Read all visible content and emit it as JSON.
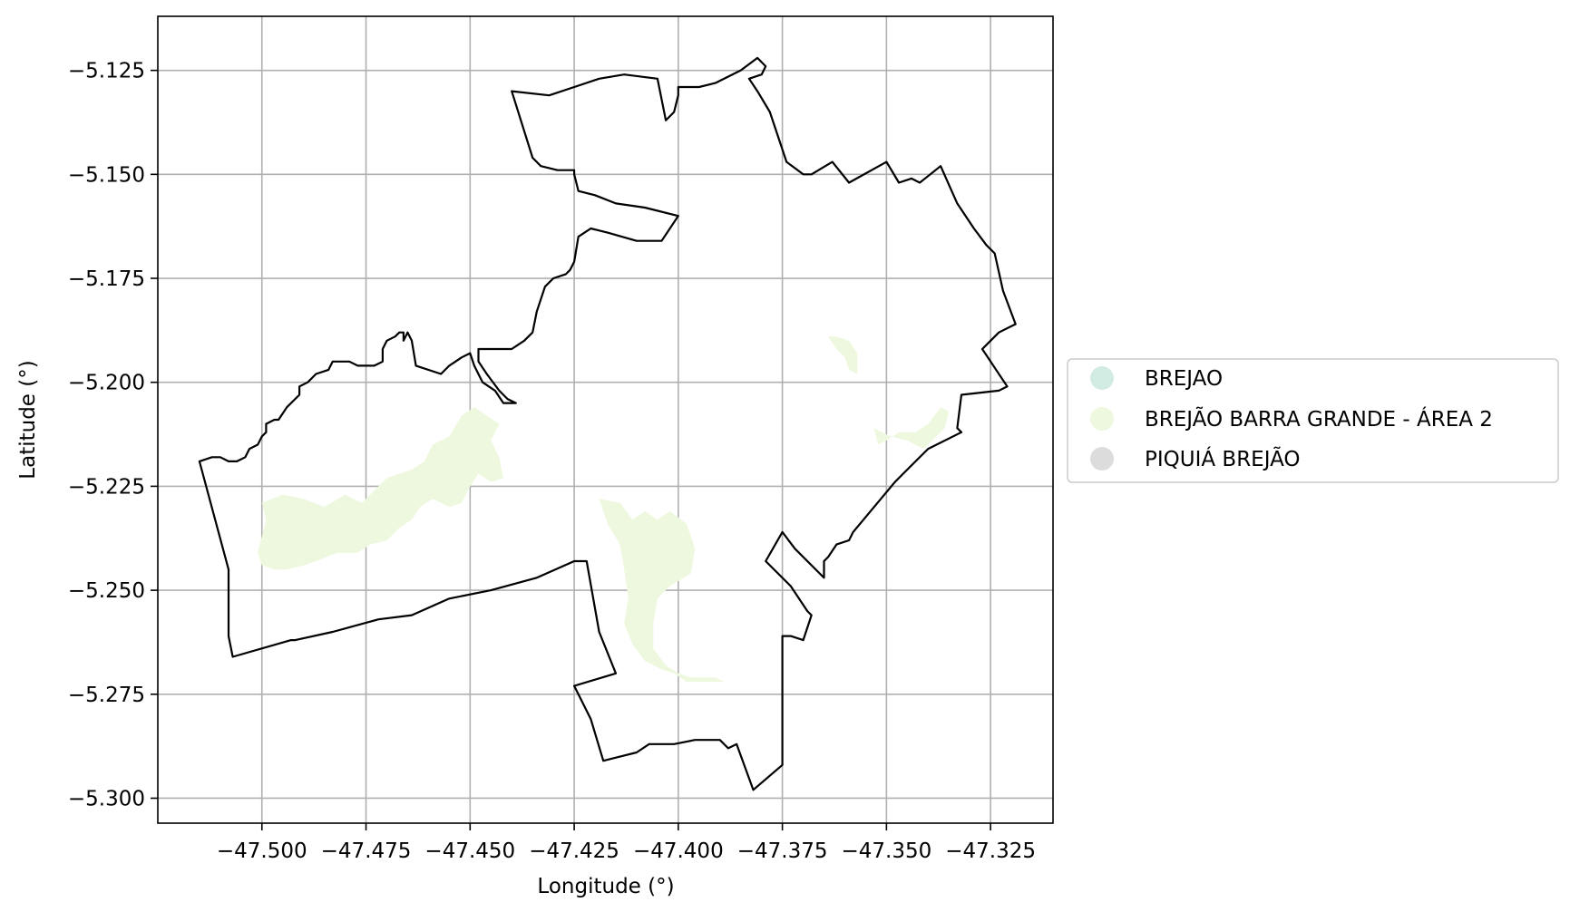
{
  "chart_data": {
    "type": "map",
    "xlabel": "Longitude (°)",
    "ylabel": "Latitude (°)",
    "xlim": [
      -47.525,
      -47.31
    ],
    "ylim": [
      -5.306,
      -5.112
    ],
    "x_ticks": [
      -47.5,
      -47.475,
      -47.45,
      -47.425,
      -47.4,
      -47.375,
      -47.35,
      -47.325
    ],
    "x_tick_labels": [
      "−47.500",
      "−47.475",
      "−47.450",
      "−47.425",
      "−47.400",
      "−47.375",
      "−47.350",
      "−47.325"
    ],
    "y_ticks": [
      -5.125,
      -5.15,
      -5.175,
      -5.2,
      -5.225,
      -5.25,
      -5.275,
      -5.3
    ],
    "y_tick_labels": [
      "−5.125",
      "−5.150",
      "−5.175",
      "−5.200",
      "−5.225",
      "−5.250",
      "−5.275",
      "−5.300"
    ],
    "grid": true,
    "legend_position": "right",
    "legend": [
      {
        "label": "BREJAO",
        "color": "#d2ece4"
      },
      {
        "label": "BREJÃO BARRA GRANDE - ÁREA 2",
        "color": "#eef8de"
      },
      {
        "label": "PIQUIÁ BREJÃO",
        "color": "#dcdcdc"
      }
    ],
    "boundary": {
      "stroke": "#000000",
      "points": [
        [
          -47.44,
          -5.13
        ],
        [
          -47.431,
          -5.131
        ],
        [
          -47.425,
          -5.129
        ],
        [
          -47.419,
          -5.127
        ],
        [
          -47.413,
          -5.126
        ],
        [
          -47.405,
          -5.127
        ],
        [
          -47.403,
          -5.137
        ],
        [
          -47.402,
          -5.136
        ],
        [
          -47.401,
          -5.135
        ],
        [
          -47.4,
          -5.131
        ],
        [
          -47.4,
          -5.129
        ],
        [
          -47.395,
          -5.129
        ],
        [
          -47.391,
          -5.128
        ],
        [
          -47.385,
          -5.125
        ],
        [
          -47.381,
          -5.122
        ],
        [
          -47.379,
          -5.124
        ],
        [
          -47.38,
          -5.126
        ],
        [
          -47.383,
          -5.127
        ],
        [
          -47.381,
          -5.13
        ],
        [
          -47.378,
          -5.135
        ],
        [
          -47.376,
          -5.141
        ],
        [
          -47.374,
          -5.147
        ],
        [
          -47.37,
          -5.15
        ],
        [
          -47.368,
          -5.15
        ],
        [
          -47.363,
          -5.147
        ],
        [
          -47.359,
          -5.152
        ],
        [
          -47.35,
          -5.147
        ],
        [
          -47.347,
          -5.152
        ],
        [
          -47.344,
          -5.151
        ],
        [
          -47.342,
          -5.152
        ],
        [
          -47.337,
          -5.148
        ],
        [
          -47.333,
          -5.157
        ],
        [
          -47.329,
          -5.163
        ],
        [
          -47.326,
          -5.167
        ],
        [
          -47.324,
          -5.169
        ],
        [
          -47.322,
          -5.178
        ],
        [
          -47.319,
          -5.186
        ],
        [
          -47.323,
          -5.188
        ],
        [
          -47.327,
          -5.192
        ],
        [
          -47.321,
          -5.201
        ],
        [
          -47.323,
          -5.202
        ],
        [
          -47.332,
          -5.203
        ],
        [
          -47.333,
          -5.211
        ],
        [
          -47.332,
          -5.212
        ],
        [
          -47.34,
          -5.216
        ],
        [
          -47.346,
          -5.222
        ],
        [
          -47.348,
          -5.224
        ],
        [
          -47.358,
          -5.236
        ],
        [
          -47.359,
          -5.238
        ],
        [
          -47.362,
          -5.239
        ],
        [
          -47.364,
          -5.242
        ],
        [
          -47.365,
          -5.243
        ],
        [
          -47.365,
          -5.247
        ],
        [
          -47.372,
          -5.24
        ],
        [
          -47.375,
          -5.236
        ],
        [
          -47.379,
          -5.243
        ],
        [
          -47.373,
          -5.249
        ],
        [
          -47.369,
          -5.255
        ],
        [
          -47.368,
          -5.256
        ],
        [
          -47.37,
          -5.262
        ],
        [
          -47.373,
          -5.261
        ],
        [
          -47.375,
          -5.261
        ],
        [
          -47.375,
          -5.264
        ],
        [
          -47.375,
          -5.292
        ],
        [
          -47.382,
          -5.298
        ],
        [
          -47.386,
          -5.287
        ],
        [
          -47.388,
          -5.288
        ],
        [
          -47.39,
          -5.286
        ],
        [
          -47.392,
          -5.286
        ],
        [
          -47.396,
          -5.286
        ],
        [
          -47.401,
          -5.287
        ],
        [
          -47.407,
          -5.287
        ],
        [
          -47.41,
          -5.289
        ],
        [
          -47.414,
          -5.29
        ],
        [
          -47.418,
          -5.291
        ],
        [
          -47.421,
          -5.281
        ],
        [
          -47.425,
          -5.273
        ],
        [
          -47.415,
          -5.27
        ],
        [
          -47.419,
          -5.26
        ],
        [
          -47.422,
          -5.243
        ],
        [
          -47.425,
          -5.243
        ],
        [
          -47.434,
          -5.247
        ],
        [
          -47.445,
          -5.25
        ],
        [
          -47.455,
          -5.252
        ],
        [
          -47.464,
          -5.256
        ],
        [
          -47.472,
          -5.257
        ],
        [
          -47.483,
          -5.26
        ],
        [
          -47.492,
          -5.262
        ],
        [
          -47.493,
          -5.262
        ],
        [
          -47.507,
          -5.266
        ],
        [
          -47.508,
          -5.261
        ],
        [
          -47.508,
          -5.245
        ],
        [
          -47.515,
          -5.219
        ],
        [
          -47.512,
          -5.218
        ],
        [
          -47.51,
          -5.218
        ],
        [
          -47.508,
          -5.219
        ],
        [
          -47.506,
          -5.219
        ],
        [
          -47.504,
          -5.218
        ],
        [
          -47.503,
          -5.216
        ],
        [
          -47.501,
          -5.215
        ],
        [
          -47.5,
          -5.213
        ],
        [
          -47.499,
          -5.212
        ],
        [
          -47.499,
          -5.21
        ],
        [
          -47.497,
          -5.209
        ],
        [
          -47.496,
          -5.209
        ],
        [
          -47.494,
          -5.206
        ],
        [
          -47.493,
          -5.205
        ],
        [
          -47.491,
          -5.203
        ],
        [
          -47.491,
          -5.201
        ],
        [
          -47.489,
          -5.2
        ],
        [
          -47.487,
          -5.198
        ],
        [
          -47.484,
          -5.197
        ],
        [
          -47.483,
          -5.195
        ],
        [
          -47.48,
          -5.195
        ],
        [
          -47.479,
          -5.195
        ],
        [
          -47.477,
          -5.196
        ],
        [
          -47.476,
          -5.196
        ],
        [
          -47.473,
          -5.196
        ],
        [
          -47.471,
          -5.195
        ],
        [
          -47.471,
          -5.192
        ],
        [
          -47.47,
          -5.19
        ],
        [
          -47.468,
          -5.189
        ],
        [
          -47.467,
          -5.188
        ],
        [
          -47.466,
          -5.188
        ],
        [
          -47.466,
          -5.19
        ],
        [
          -47.465,
          -5.188
        ],
        [
          -47.464,
          -5.19
        ],
        [
          -47.463,
          -5.196
        ],
        [
          -47.457,
          -5.198
        ],
        [
          -47.455,
          -5.196
        ],
        [
          -47.452,
          -5.194
        ],
        [
          -47.45,
          -5.193
        ],
        [
          -47.449,
          -5.196
        ],
        [
          -47.447,
          -5.2
        ],
        [
          -47.444,
          -5.202
        ],
        [
          -47.442,
          -5.205
        ],
        [
          -47.44,
          -5.205
        ],
        [
          -47.439,
          -5.205
        ],
        [
          -47.441,
          -5.204
        ],
        [
          -47.443,
          -5.202
        ],
        [
          -47.446,
          -5.198
        ],
        [
          -47.448,
          -5.195
        ],
        [
          -47.448,
          -5.192
        ],
        [
          -47.443,
          -5.192
        ],
        [
          -47.44,
          -5.192
        ],
        [
          -47.437,
          -5.19
        ],
        [
          -47.435,
          -5.188
        ],
        [
          -47.434,
          -5.183
        ],
        [
          -47.432,
          -5.177
        ],
        [
          -47.43,
          -5.175
        ],
        [
          -47.427,
          -5.174
        ],
        [
          -47.426,
          -5.173
        ],
        [
          -47.425,
          -5.171
        ],
        [
          -47.424,
          -5.165
        ],
        [
          -47.421,
          -5.163
        ],
        [
          -47.417,
          -5.164
        ],
        [
          -47.41,
          -5.166
        ],
        [
          -47.404,
          -5.166
        ],
        [
          -47.4,
          -5.16
        ],
        [
          -47.408,
          -5.158
        ],
        [
          -47.415,
          -5.157
        ],
        [
          -47.42,
          -5.155
        ],
        [
          -47.424,
          -5.154
        ],
        [
          -47.425,
          -5.15
        ],
        [
          -47.425,
          -5.149
        ],
        [
          -47.429,
          -5.149
        ],
        [
          -47.433,
          -5.148
        ],
        [
          -47.435,
          -5.146
        ],
        [
          -47.44,
          -5.13
        ]
      ]
    },
    "wetland_patches": {
      "fill": "#eef8de",
      "polygons": [
        [
          [
            -47.5,
            -5.229
          ],
          [
            -47.495,
            -5.227
          ],
          [
            -47.49,
            -5.228
          ],
          [
            -47.485,
            -5.23
          ],
          [
            -47.48,
            -5.227
          ],
          [
            -47.476,
            -5.229
          ],
          [
            -47.473,
            -5.226
          ],
          [
            -47.47,
            -5.223
          ],
          [
            -47.467,
            -5.222
          ],
          [
            -47.464,
            -5.221
          ],
          [
            -47.461,
            -5.219
          ],
          [
            -47.459,
            -5.215
          ],
          [
            -47.455,
            -5.213
          ],
          [
            -47.452,
            -5.208
          ],
          [
            -47.449,
            -5.206
          ],
          [
            -47.446,
            -5.208
          ],
          [
            -47.443,
            -5.21
          ],
          [
            -47.445,
            -5.214
          ],
          [
            -47.443,
            -5.218
          ],
          [
            -47.442,
            -5.223
          ],
          [
            -47.445,
            -5.224
          ],
          [
            -47.448,
            -5.222
          ],
          [
            -47.45,
            -5.225
          ],
          [
            -47.452,
            -5.229
          ],
          [
            -47.455,
            -5.23
          ],
          [
            -47.459,
            -5.228
          ],
          [
            -47.462,
            -5.23
          ],
          [
            -47.464,
            -5.233
          ],
          [
            -47.467,
            -5.235
          ],
          [
            -47.47,
            -5.238
          ],
          [
            -47.474,
            -5.239
          ],
          [
            -47.477,
            -5.241
          ],
          [
            -47.482,
            -5.241
          ],
          [
            -47.487,
            -5.243
          ],
          [
            -47.49,
            -5.244
          ],
          [
            -47.494,
            -5.245
          ],
          [
            -47.497,
            -5.245
          ],
          [
            -47.5,
            -5.244
          ],
          [
            -47.501,
            -5.241
          ],
          [
            -47.5,
            -5.237
          ],
          [
            -47.499,
            -5.233
          ]
        ],
        [
          [
            -47.419,
            -5.228
          ],
          [
            -47.414,
            -5.229
          ],
          [
            -47.411,
            -5.233
          ],
          [
            -47.408,
            -5.231
          ],
          [
            -47.405,
            -5.233
          ],
          [
            -47.402,
            -5.231
          ],
          [
            -47.398,
            -5.234
          ],
          [
            -47.396,
            -5.24
          ],
          [
            -47.397,
            -5.246
          ],
          [
            -47.402,
            -5.249
          ],
          [
            -47.405,
            -5.252
          ],
          [
            -47.406,
            -5.258
          ],
          [
            -47.406,
            -5.264
          ],
          [
            -47.403,
            -5.268
          ],
          [
            -47.4,
            -5.27
          ],
          [
            -47.397,
            -5.271
          ],
          [
            -47.394,
            -5.271
          ],
          [
            -47.391,
            -5.271
          ],
          [
            -47.389,
            -5.272
          ],
          [
            -47.393,
            -5.272
          ],
          [
            -47.398,
            -5.272
          ],
          [
            -47.401,
            -5.27
          ],
          [
            -47.404,
            -5.269
          ],
          [
            -47.408,
            -5.267
          ],
          [
            -47.411,
            -5.263
          ],
          [
            -47.413,
            -5.258
          ],
          [
            -47.412,
            -5.252
          ],
          [
            -47.413,
            -5.245
          ],
          [
            -47.414,
            -5.239
          ],
          [
            -47.417,
            -5.234
          ]
        ],
        [
          [
            -47.364,
            -5.189
          ],
          [
            -47.362,
            -5.192
          ],
          [
            -47.36,
            -5.194
          ],
          [
            -47.359,
            -5.197
          ],
          [
            -47.357,
            -5.198
          ],
          [
            -47.357,
            -5.193
          ],
          [
            -47.359,
            -5.19
          ],
          [
            -47.362,
            -5.189
          ]
        ],
        [
          [
            -47.353,
            -5.211
          ],
          [
            -47.349,
            -5.213
          ],
          [
            -47.345,
            -5.214
          ],
          [
            -47.341,
            -5.216
          ],
          [
            -47.339,
            -5.214
          ],
          [
            -47.336,
            -5.211
          ],
          [
            -47.335,
            -5.207
          ],
          [
            -47.337,
            -5.206
          ],
          [
            -47.34,
            -5.21
          ],
          [
            -47.343,
            -5.212
          ],
          [
            -47.347,
            -5.212
          ],
          [
            -47.35,
            -5.214
          ],
          [
            -47.352,
            -5.215
          ]
        ]
      ]
    }
  }
}
